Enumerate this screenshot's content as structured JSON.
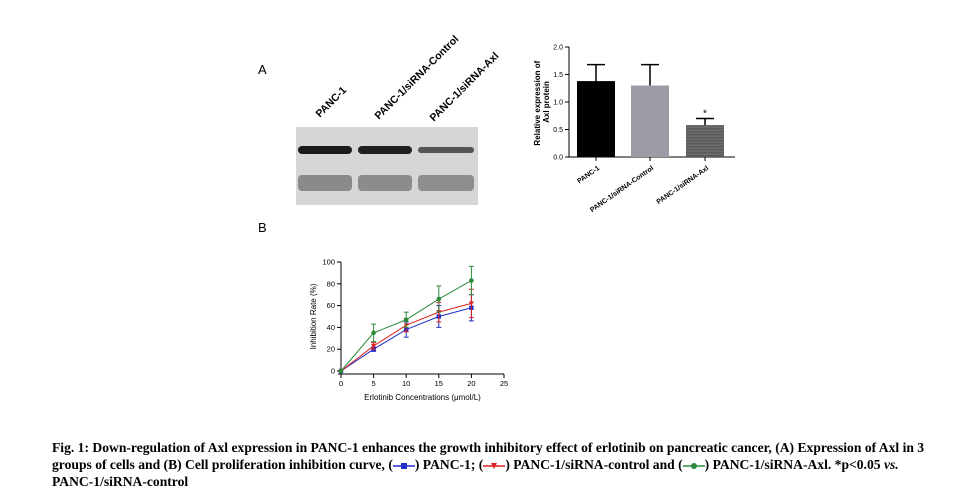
{
  "panel_a": {
    "letter": "A",
    "blot_lanes": [
      "PANC-1",
      "PANC-1/siRNA-Control",
      "PANC-1/siRNA-Axl"
    ]
  },
  "panel_b": {
    "letter": "B"
  },
  "chart_data": [
    {
      "type": "bar",
      "categories": [
        "PANC-1",
        "PANC-1/siRNA-Control",
        "PANC-1/siRNA-Axl"
      ],
      "values": [
        1.38,
        1.3,
        0.58
      ],
      "error": [
        0.3,
        0.38,
        0.12
      ],
      "bar_colors": [
        "#000000",
        "#9c9ca6",
        "#5a5a5a"
      ],
      "annotation": "*",
      "ylabel": "Relative expression of Axl protein",
      "yticks": [
        "0.0",
        "0.5",
        "1.0",
        "1.5",
        "2.0"
      ],
      "ylim": [
        0,
        2.0
      ]
    },
    {
      "type": "line",
      "x": [
        0,
        5,
        10,
        15,
        20
      ],
      "series": [
        {
          "values": [
            0,
            20,
            38,
            50,
            58
          ],
          "error": [
            0,
            2,
            7,
            10,
            12
          ],
          "color": "#1f2fc8"
        },
        {
          "values": [
            0,
            23,
            42,
            54,
            62
          ],
          "error": [
            0,
            3,
            6,
            9,
            13
          ],
          "color": "#e02020"
        },
        {
          "values": [
            0,
            35,
            47,
            66,
            83
          ],
          "error": [
            0,
            8,
            7,
            12,
            13
          ],
          "color": "#2a8a3a"
        }
      ],
      "xlabel": "Erlotinib Concentrations (μmol/L)",
      "ylabel": "Inhibition Rate (%)",
      "xticks": [
        "0",
        "5",
        "10",
        "15",
        "20",
        "25"
      ],
      "yticks": [
        "0",
        "20",
        "40",
        "60",
        "80",
        "100"
      ],
      "xlim": [
        0,
        25
      ],
      "ylim": [
        0,
        100
      ]
    }
  ],
  "caption": {
    "part1": "Fig. 1: Down-regulation of Axl expression in PANC-1 enhances the growth inhibitory effect of erlotinib on pancreatic cancer, (A) Expression of Axl in 3 groups of cells and (B) Cell proliferation inhibition curve, (",
    "part2": ") PANC-1; (",
    "part3": ") PANC-1/siRNA-control and (",
    "part4": ") PANC-1/siRNA-Axl. *p<0.05 ",
    "vs": "vs.",
    "part5": " PANC-1/siRNA-control"
  }
}
